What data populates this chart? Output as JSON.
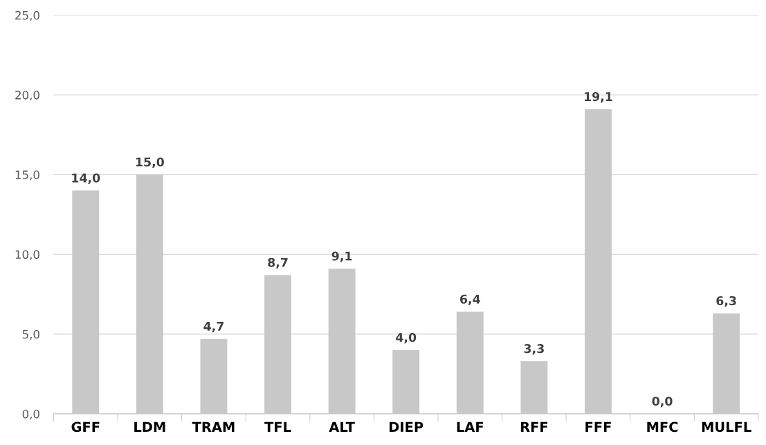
{
  "chart_data": {
    "type": "bar",
    "categories": [
      "GFF",
      "LDM",
      "TRAM",
      "TFL",
      "ALT",
      "DIEP",
      "LAF",
      "RFF",
      "FFF",
      "MFC",
      "MULFL"
    ],
    "values": [
      14.0,
      15.0,
      4.7,
      8.7,
      9.1,
      4.0,
      6.4,
      3.3,
      19.1,
      0.0,
      6.3
    ],
    "value_labels": [
      "14,0",
      "15,0",
      "4,7",
      "8,7",
      "9,1",
      "4,0",
      "6,4",
      "3,3",
      "19,1",
      "0,0",
      "6,3"
    ],
    "color": "#c8c8c8",
    "ylim": [
      0,
      25
    ],
    "yticks": [
      {
        "value": 0,
        "label": "0,0"
      },
      {
        "value": 5,
        "label": "5,0"
      },
      {
        "value": 10,
        "label": "10,0"
      },
      {
        "value": 15,
        "label": "15,0"
      },
      {
        "value": 20,
        "label": "20,0"
      },
      {
        "value": 25,
        "label": "25,0"
      }
    ],
    "grid": "y"
  }
}
